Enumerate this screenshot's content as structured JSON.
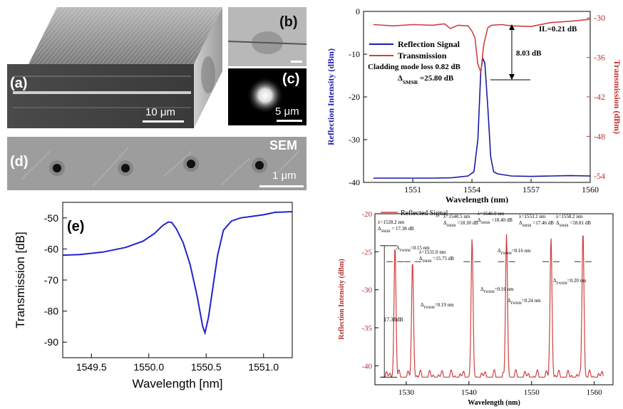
{
  "micro": {
    "a": {
      "label": "(a)",
      "scale": "10 μm"
    },
    "b": {
      "label": "(b)"
    },
    "c": {
      "label": "(c)",
      "scale": "5 μm"
    },
    "d": {
      "label": "(d)",
      "tag": "SEM",
      "scale": "1 μm"
    }
  },
  "chart_data": [
    {
      "id": "top-right",
      "type": "line",
      "xlabel": "Wavelength (nm)",
      "ylabel": "Reflection Intensity (dBm)",
      "y2label": "Transmission (dBm)",
      "xlim": [
        1548.5,
        1560
      ],
      "ylim": [
        -40,
        0
      ],
      "y2lim": [
        -55,
        -29
      ],
      "xticks": [
        1551,
        1554,
        1557,
        1560
      ],
      "yticks": [
        -40,
        -30,
        -20,
        -10,
        0
      ],
      "y2ticks": [
        -54,
        -48,
        -42,
        -36,
        -30
      ],
      "series": [
        {
          "name": "Reflection Signal",
          "axis": "left",
          "color": "#1a1aa8",
          "x": [
            1549,
            1550,
            1551,
            1552,
            1553,
            1553.8,
            1554.1,
            1554.3,
            1554.45,
            1554.55,
            1554.65,
            1554.8,
            1554.95,
            1555.1,
            1555.3,
            1556,
            1557,
            1558,
            1559,
            1560
          ],
          "y": [
            -39,
            -39,
            -39,
            -39,
            -38.9,
            -38.5,
            -37.5,
            -30,
            -14,
            -11,
            -12,
            -22,
            -34,
            -37.5,
            -38,
            -38.5,
            -38.6,
            -38.5,
            -38.4,
            -38.5
          ]
        },
        {
          "name": "Transmission",
          "axis": "right",
          "color": "#d04040",
          "x": [
            1549,
            1550,
            1551,
            1552,
            1552.6,
            1552.9,
            1553.3,
            1553.8,
            1554.0,
            1554.15,
            1554.3,
            1554.45,
            1554.6,
            1554.8,
            1555.0,
            1555.5,
            1556,
            1557,
            1558,
            1559,
            1560
          ],
          "y": [
            -31,
            -31.2,
            -31,
            -31.1,
            -30.9,
            -31.6,
            -31.1,
            -31.2,
            -32,
            -33,
            -37,
            -38.3,
            -34,
            -31.5,
            -31.1,
            -31,
            -31.2,
            -31.3,
            -30.7,
            -30.5,
            -30.2
          ]
        }
      ],
      "annotations": {
        "il": "IL=0.21 dB",
        "depth": "8.03 dB",
        "cladding": "Cladding mode loss 0.82 dB",
        "smsr_prefix": "Δ",
        "smsr_sub": "SMSR",
        "smsr_value": "=25.80 dB"
      }
    },
    {
      "id": "bottom-left",
      "type": "line",
      "panel_label": "(e)",
      "xlabel": "Wavelength [nm]",
      "ylabel": "Transmission [dB]",
      "xlim": [
        1549.25,
        1551.25
      ],
      "ylim": [
        -95,
        -45
      ],
      "xticks": [
        1549.5,
        1550.0,
        1550.5,
        1551.0
      ],
      "xticklabels": [
        "1549.5",
        "1550.0",
        "1550.5",
        "1551.0"
      ],
      "yticks": [
        -90,
        -80,
        -70,
        -60,
        -50
      ],
      "series": [
        {
          "color": "#2222cc",
          "x": [
            1549.25,
            1549.4,
            1549.6,
            1549.8,
            1549.95,
            1550.05,
            1550.12,
            1550.17,
            1550.2,
            1550.24,
            1550.3,
            1550.36,
            1550.42,
            1550.45,
            1550.47,
            1550.49,
            1550.52,
            1550.56,
            1550.6,
            1550.65,
            1550.72,
            1550.8,
            1550.9,
            1551.0,
            1551.1,
            1551.25
          ],
          "y": [
            -62,
            -61.8,
            -61,
            -59.5,
            -57.5,
            -55,
            -52.5,
            -51.3,
            -51.5,
            -53.5,
            -58,
            -65,
            -75,
            -81,
            -85,
            -87,
            -82,
            -72,
            -62,
            -54,
            -51,
            -50,
            -49.5,
            -49,
            -48.2,
            -48
          ]
        }
      ]
    },
    {
      "id": "bottom-right",
      "type": "line",
      "xlabel": "Wavelength (nm)",
      "ylabel": "Reflection Intensity (dBm)",
      "xlim": [
        1525,
        1563
      ],
      "ylim": [
        -42.5,
        -20
      ],
      "xticks": [
        1530,
        1540,
        1550,
        1560
      ],
      "yticks": [
        -40,
        -35,
        -30,
        -25,
        -20
      ],
      "series": [
        {
          "name": "Reflected Signal",
          "color": "#d04040",
          "peaks": [
            {
              "x": 1528.2,
              "y": -24.2
            },
            {
              "x": 1531.0,
              "y": -26.2
            },
            {
              "x": 1540.5,
              "y": -23.2
            },
            {
              "x": 1546.0,
              "y": -22.7
            },
            {
              "x": 1553.1,
              "y": -23.1
            },
            {
              "x": 1558.2,
              "y": -22.3
            }
          ],
          "baseline": -41.5
        }
      ],
      "peak_labels": [
        {
          "lambda": "λ=1528.2 nm",
          "smsr": "Δ",
          "sub": "SMSR",
          "val": "= 17.38 dB"
        },
        {
          "lambda": "λ=1531.0 nm",
          "smsr": "Δ",
          "sub": "SMSR",
          "val": "=15.75 dB"
        },
        {
          "lambda": "λ=1540.5 nm",
          "smsr": "Δ",
          "sub": "SMSR",
          "val": "=18.30 dB"
        },
        {
          "lambda": "λ=1546.0 nm",
          "smsr": "Δ",
          "sub": "SMSR",
          "val": "=18.40 dB"
        },
        {
          "lambda": "λ=1553.1 nm",
          "smsr": "Δ",
          "sub": "SMSR",
          "val": "=17.46 dB"
        },
        {
          "lambda": "λ=1558.2 nm",
          "smsr": "Δ",
          "sub": "SMSR",
          "val": "=18.81 dB"
        }
      ],
      "fwhm_labels": [
        {
          "pre": "Δ",
          "sub": "FWHM",
          "val": "=0.15 nm"
        },
        {
          "pre": "Δ",
          "sub": "FWHM",
          "val": "=0.19 nm"
        },
        {
          "pre": "Δ",
          "sub": "FWHM",
          "val": "=0.16 nm"
        },
        {
          "pre": "Δ",
          "sub": "FWHM",
          "val": "=0.16 nm"
        },
        {
          "pre": "Δ",
          "sub": "FWHM",
          "val": "=0.24 nm"
        },
        {
          "pre": "Δ",
          "sub": "FWHM",
          "val": "=0.20 nm"
        }
      ],
      "depth_label": "17.38dB"
    }
  ]
}
